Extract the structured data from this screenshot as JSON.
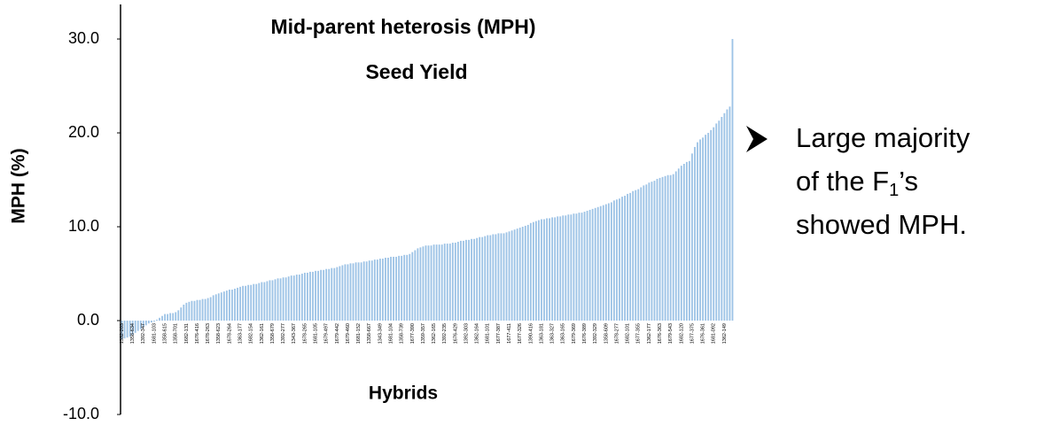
{
  "chart_data": {
    "type": "bar",
    "title": "Mid-parent heterosis (MPH)",
    "subtitle": "Seed Yield",
    "y_label": "MPH (%)",
    "x_label": "Hybrids",
    "color": "#9dc3e6",
    "ylim": [
      -10,
      33.4
    ],
    "yticks": [
      {
        "value": -10,
        "label": "-10.0"
      },
      {
        "value": 0,
        "label": "0.0"
      },
      {
        "value": 10,
        "label": "10.0"
      },
      {
        "value": 20,
        "label": "20.0"
      },
      {
        "value": 30,
        "label": "30.0"
      }
    ],
    "grid": false,
    "annotation": {
      "line1": "Large majority",
      "line2_pre": "of the F",
      "line2_sub": "1",
      "line2_post": "’s",
      "line3": "showed MPH."
    },
    "categories": [
      "1352-203",
      null,
      null,
      null,
      "1358-634",
      null,
      null,
      null,
      "1392-347",
      null,
      null,
      null,
      "1681-103",
      null,
      null,
      null,
      "1358-615",
      null,
      null,
      null,
      "1358-701",
      null,
      null,
      null,
      "1682-131",
      null,
      null,
      null,
      "1676-416",
      null,
      null,
      null,
      "1678-263",
      null,
      null,
      null,
      "1358-623",
      null,
      null,
      null,
      "1678-264",
      null,
      null,
      null,
      "1363-177",
      null,
      null,
      null,
      "1682-154",
      null,
      null,
      null,
      "1362-161",
      null,
      null,
      null,
      "1358-679",
      null,
      null,
      null,
      "1392-277",
      null,
      null,
      null,
      "1343-367",
      null,
      null,
      null,
      "1678-265",
      null,
      null,
      null,
      "1681-105",
      null,
      null,
      null,
      "1679-497",
      null,
      null,
      null,
      "1679-442",
      null,
      null,
      null,
      "1679-460",
      null,
      null,
      null,
      "1681-152",
      null,
      null,
      null,
      "1358-667",
      null,
      null,
      null,
      "1343-349",
      null,
      null,
      null,
      "1681-104",
      null,
      null,
      null,
      "1358-739",
      null,
      null,
      null,
      "1677-390",
      null,
      null,
      null,
      "1359-357",
      null,
      null,
      null,
      "1362-165",
      null,
      null,
      null,
      "1392-235",
      null,
      null,
      null,
      "1676-429",
      null,
      null,
      null,
      "1392-303",
      null,
      null,
      null,
      "1362-164",
      null,
      null,
      null,
      "1681-101",
      null,
      null,
      null,
      "1677-387",
      null,
      null,
      null,
      "1677-411",
      null,
      null,
      null,
      "1677-326",
      null,
      null,
      null,
      "1390-416",
      null,
      null,
      null,
      "1363-181",
      null,
      null,
      null,
      "1363-327",
      null,
      null,
      null,
      "1363-165",
      null,
      null,
      null,
      "1679-369",
      null,
      null,
      null,
      "1676-389",
      null,
      null,
      null,
      "1392-329",
      null,
      null,
      null,
      "1358-609",
      null,
      null,
      null,
      "1678-277",
      null,
      null,
      null,
      "1682-101",
      null,
      null,
      null,
      "1677-355",
      null,
      null,
      null,
      "1362-177",
      null,
      null,
      null,
      "1676-363",
      null,
      null,
      null,
      "1679-543",
      null,
      null,
      null,
      "1682-120",
      null,
      null,
      null,
      "1677-375",
      null,
      null,
      null,
      "1676-361",
      null,
      null,
      null,
      "1681-092",
      null,
      null,
      null,
      "1362-149",
      null,
      null,
      null
    ],
    "values": [
      -2.0,
      -1.9,
      -1.8,
      -1.7,
      -1.5,
      -1.3,
      -1.1,
      -0.9,
      -0.7,
      -0.5,
      -0.3,
      -0.2,
      -0.1,
      0.1,
      0.3,
      0.5,
      0.7,
      0.7,
      0.8,
      0.8,
      0.9,
      1.1,
      1.4,
      1.7,
      1.9,
      2.0,
      2.1,
      2.1,
      2.2,
      2.2,
      2.3,
      2.3,
      2.4,
      2.5,
      2.7,
      2.8,
      2.9,
      3.0,
      3.1,
      3.2,
      3.3,
      3.3,
      3.4,
      3.5,
      3.6,
      3.7,
      3.7,
      3.8,
      3.8,
      3.9,
      3.9,
      4.0,
      4.1,
      4.1,
      4.2,
      4.3,
      4.3,
      4.4,
      4.5,
      4.5,
      4.6,
      4.6,
      4.7,
      4.8,
      4.8,
      4.9,
      4.9,
      5.0,
      5.1,
      5.1,
      5.2,
      5.2,
      5.3,
      5.3,
      5.4,
      5.4,
      5.5,
      5.5,
      5.6,
      5.6,
      5.7,
      5.8,
      5.9,
      6.0,
      6.0,
      6.1,
      6.1,
      6.2,
      6.2,
      6.2,
      6.3,
      6.3,
      6.4,
      6.4,
      6.5,
      6.5,
      6.6,
      6.6,
      6.7,
      6.7,
      6.8,
      6.8,
      6.8,
      6.9,
      6.9,
      7.0,
      7.0,
      7.1,
      7.3,
      7.5,
      7.7,
      7.8,
      7.9,
      8.0,
      8.0,
      8.0,
      8.1,
      8.1,
      8.1,
      8.1,
      8.2,
      8.2,
      8.2,
      8.3,
      8.3,
      8.4,
      8.5,
      8.5,
      8.6,
      8.6,
      8.7,
      8.7,
      8.8,
      8.9,
      8.9,
      9.0,
      9.1,
      9.1,
      9.2,
      9.2,
      9.3,
      9.3,
      9.3,
      9.4,
      9.5,
      9.6,
      9.7,
      9.8,
      9.9,
      10.0,
      10.1,
      10.2,
      10.4,
      10.5,
      10.6,
      10.7,
      10.8,
      10.8,
      10.9,
      10.9,
      11.0,
      11.0,
      11.1,
      11.1,
      11.2,
      11.2,
      11.3,
      11.3,
      11.4,
      11.4,
      11.5,
      11.5,
      11.6,
      11.7,
      11.8,
      11.9,
      12.0,
      12.1,
      12.2,
      12.3,
      12.4,
      12.5,
      12.6,
      12.8,
      12.9,
      13.0,
      13.2,
      13.3,
      13.5,
      13.6,
      13.8,
      13.9,
      14.0,
      14.2,
      14.4,
      14.5,
      14.7,
      14.8,
      14.9,
      15.1,
      15.2,
      15.3,
      15.4,
      15.5,
      15.5,
      15.6,
      15.9,
      16.2,
      16.5,
      16.7,
      16.9,
      17.0,
      17.8,
      18.5,
      19.0,
      19.3,
      19.5,
      19.8,
      20.0,
      20.3,
      20.6,
      21.0,
      21.3,
      21.7,
      22.1,
      22.5,
      22.8,
      30.0
    ]
  }
}
